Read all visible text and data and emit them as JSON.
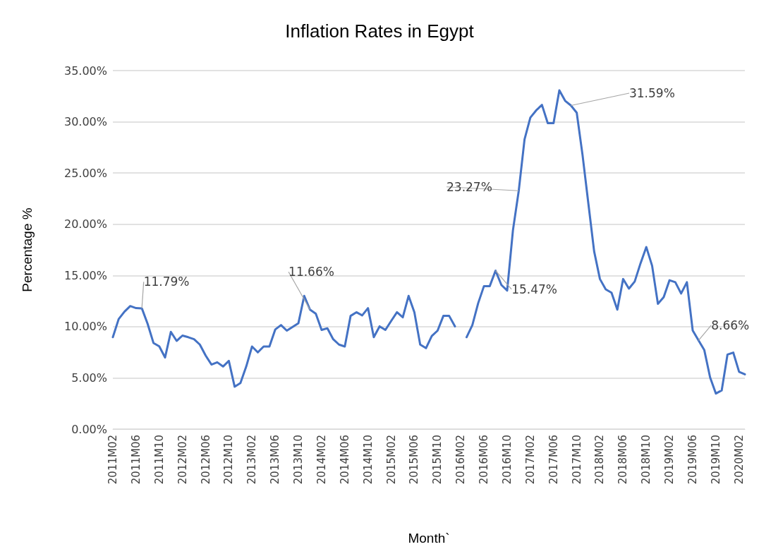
{
  "chart_data": {
    "type": "line",
    "title": "Inflation Rates in Egypt",
    "xlabel": "Month`",
    "ylabel": "Percentage %",
    "categories": [
      "2011M02",
      null,
      null,
      null,
      "2011M06",
      null,
      null,
      null,
      "2011M10",
      null,
      null,
      null,
      "2012M02",
      null,
      null,
      null,
      "2012M06",
      null,
      null,
      null,
      "2012M10",
      null,
      null,
      null,
      "2013M02",
      null,
      null,
      null,
      "2013M06",
      null,
      null,
      null,
      "2013M10",
      null,
      null,
      null,
      "2014M02",
      null,
      null,
      null,
      "2014M06",
      null,
      null,
      null,
      "2014M10",
      null,
      null,
      null,
      "2015M02",
      null,
      null,
      null,
      "2015M06",
      null,
      null,
      null,
      "2015M10",
      null,
      null,
      null,
      "2016M02",
      null,
      null,
      null,
      "2016M06",
      null,
      null,
      null,
      "2016M10",
      null,
      null,
      null,
      "2017M02",
      null,
      null,
      null,
      "2017M06",
      null,
      null,
      null,
      "2017M10",
      null,
      null,
      null,
      "2018M02",
      null,
      null,
      null,
      "2018M06",
      null,
      null,
      null,
      "2018M10",
      null,
      null,
      null,
      "2019M02",
      null,
      null,
      null,
      "2019M06",
      null,
      null,
      null,
      "2019M10",
      null,
      null,
      null,
      "2020M02",
      null
    ],
    "series": [
      {
        "color": "#4472c4",
        "values": [
          8.97,
          10.74,
          11.46,
          12.01,
          11.81,
          11.79,
          10.27,
          8.41,
          8.08,
          6.99,
          9.49,
          8.61,
          9.13,
          8.97,
          8.77,
          8.25,
          7.18,
          6.3,
          6.52,
          6.11,
          6.66,
          4.14,
          4.49,
          6.11,
          8.06,
          7.49,
          8.06,
          8.06,
          9.72,
          10.15,
          9.61,
          9.97,
          10.34,
          13.0,
          11.66,
          11.27,
          9.68,
          9.84,
          8.77,
          8.25,
          8.06,
          11.05,
          11.41,
          11.1,
          11.81,
          8.97,
          10.03,
          9.68,
          10.56,
          11.41,
          10.91,
          13.0,
          11.41,
          8.25,
          7.9,
          9.08,
          9.61,
          11.05,
          11.05,
          10.03,
          null,
          8.97,
          10.15,
          12.29,
          13.96,
          13.96,
          15.47,
          14.07,
          13.53,
          19.42,
          23.27,
          28.29,
          30.41,
          31.11,
          31.65,
          29.87,
          29.87,
          33.07,
          32.05,
          31.59,
          30.88,
          26.76,
          22.05,
          17.35,
          14.65,
          13.64,
          13.31,
          11.66,
          14.65,
          13.71,
          14.41,
          16.18,
          17.77,
          15.94,
          12.23,
          12.88,
          14.53,
          14.34,
          13.24,
          14.34,
          9.63,
          8.66,
          7.71,
          5.05,
          3.47,
          3.78,
          7.28,
          7.47,
          5.59,
          5.35
        ],
        "value_labels": [
          null,
          null,
          null,
          null,
          null,
          "11.79%",
          null,
          null,
          null,
          null,
          null,
          null,
          null,
          null,
          null,
          null,
          null,
          null,
          null,
          null,
          null,
          null,
          null,
          null,
          null,
          null,
          null,
          null,
          null,
          null,
          null,
          null,
          null,
          null,
          "11.66%",
          null,
          null,
          null,
          null,
          null,
          null,
          null,
          null,
          null,
          null,
          null,
          null,
          null,
          null,
          null,
          null,
          null,
          null,
          null,
          null,
          null,
          null,
          null,
          null,
          null,
          null,
          null,
          null,
          null,
          null,
          null,
          "15.47%",
          null,
          null,
          null,
          "23.27%",
          null,
          null,
          null,
          null,
          null,
          null,
          null,
          null,
          "31.59%",
          null,
          null,
          null,
          null,
          null,
          null,
          null,
          null,
          null,
          null,
          null,
          null,
          null,
          null,
          null,
          null,
          null,
          null,
          null,
          null,
          null,
          "8.66%",
          null,
          null,
          null,
          null,
          null,
          null,
          null,
          null
        ]
      }
    ],
    "ylim": [
      0,
      35
    ],
    "yticks": [
      {
        "value": 0,
        "label": "0.00%"
      },
      {
        "value": 5,
        "label": "5.00%"
      },
      {
        "value": 10,
        "label": "10.00%"
      },
      {
        "value": 15,
        "label": "15.00%"
      },
      {
        "value": 20,
        "label": "20.00%"
      },
      {
        "value": 25,
        "label": "25.00%"
      },
      {
        "value": 30,
        "label": "30.00%"
      },
      {
        "value": 35,
        "label": "35.00%"
      }
    ],
    "grid": "y",
    "marker": "none",
    "line_style": "solid"
  }
}
